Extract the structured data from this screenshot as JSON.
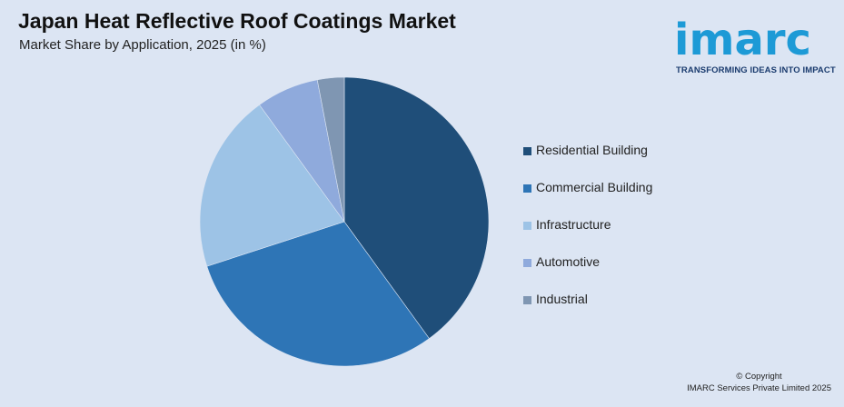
{
  "header": {
    "title": "Japan Heat Reflective Roof Coatings Market",
    "subtitle": "Market Share by Application, 2025 (in %)"
  },
  "logo": {
    "word": "imarc",
    "tagline": "TRANSFORMING IDEAS INTO IMPACT",
    "color": "#1d9ad6"
  },
  "chart_data": {
    "type": "pie",
    "title": "Japan Heat Reflective Roof Coatings Market",
    "subtitle": "Market Share by Application, 2025 (in %)",
    "categories": [
      "Residential Building",
      "Commercial Building",
      "Infrastructure",
      "Automotive",
      "Industrial"
    ],
    "values": [
      40,
      30,
      20,
      7,
      3
    ],
    "colors": [
      "#1f4e79",
      "#2e75b6",
      "#9dc3e6",
      "#8faadc",
      "#7f96b2"
    ],
    "legend_position": "right"
  },
  "footer": {
    "copyright_line1": "© Copyright",
    "copyright_line2": "IMARC Services Private Limited 2025"
  }
}
